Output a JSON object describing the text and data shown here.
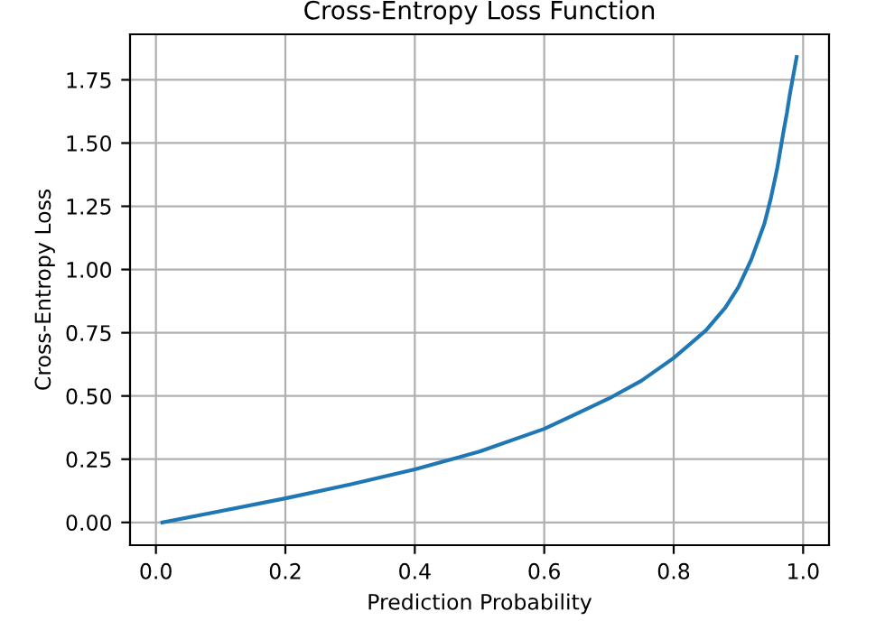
{
  "chart_data": {
    "type": "line",
    "title": "Cross-Entropy Loss Function",
    "xlabel": "Prediction Probability",
    "ylabel": "Cross-Entropy Loss",
    "series": [
      {
        "color": "#1f77b4",
        "x": [
          0.01,
          0.1,
          0.2,
          0.3,
          0.4,
          0.5,
          0.6,
          0.65,
          0.7,
          0.75,
          0.8,
          0.85,
          0.88,
          0.9,
          0.92,
          0.94,
          0.95,
          0.96,
          0.97,
          0.975,
          0.98,
          0.985,
          0.99
        ],
        "values": [
          0.0,
          0.045,
          0.095,
          0.15,
          0.21,
          0.28,
          0.37,
          0.43,
          0.49,
          0.56,
          0.65,
          0.76,
          0.85,
          0.93,
          1.04,
          1.18,
          1.28,
          1.4,
          1.55,
          1.62,
          1.7,
          1.77,
          1.84
        ]
      }
    ],
    "xlim": [
      -0.04,
      1.04
    ],
    "ylim": [
      -0.09,
      1.93
    ],
    "xticks": [
      {
        "value": 0,
        "label": "0.0"
      },
      0.2,
      0.4,
      0.6,
      0.8,
      {
        "value": 1,
        "label": "1.0"
      }
    ],
    "yticks": [
      {
        "value": 0,
        "label": "0.00"
      },
      {
        "value": 0.25,
        "label": "0.25"
      },
      {
        "value": 0.5,
        "label": "0.50"
      },
      {
        "value": 0.75,
        "label": "0.75"
      },
      {
        "value": 1,
        "label": "1.00"
      },
      {
        "value": 1.25,
        "label": "1.25"
      },
      {
        "value": 1.5,
        "label": "1.50"
      },
      {
        "value": 1.75,
        "label": "1.75"
      }
    ],
    "grid": true,
    "marker": "none",
    "line_style": "solid"
  }
}
